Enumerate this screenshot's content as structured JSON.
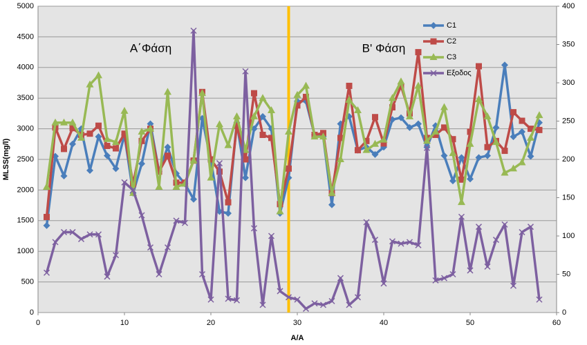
{
  "chart_data": {
    "type": "line",
    "x_label": "A/A",
    "y_label": "MLSS(mg/l)",
    "annotations": [
      "Α΄Φάση",
      "Β' Φάση"
    ],
    "phase_divider": {
      "x": 29,
      "color": "#ffc000"
    },
    "x": [
      1,
      2,
      3,
      4,
      5,
      6,
      7,
      8,
      9,
      10,
      11,
      12,
      13,
      14,
      15,
      16,
      17,
      18,
      19,
      20,
      21,
      22,
      23,
      24,
      25,
      26,
      27,
      28,
      29,
      30,
      31,
      32,
      33,
      34,
      35,
      36,
      37,
      38,
      39,
      40,
      41,
      42,
      43,
      44,
      45,
      46,
      47,
      48,
      49,
      50,
      51,
      52,
      53,
      54,
      55,
      56,
      57,
      58
    ],
    "series": [
      {
        "name": "C1",
        "color": "#4a7ebb",
        "marker": "diamond",
        "values": [
          1420,
          2550,
          2230,
          2750,
          3000,
          2320,
          2870,
          2560,
          2350,
          2900,
          1950,
          2430,
          3080,
          2300,
          2700,
          2270,
          2100,
          1850,
          3170,
          2480,
          1650,
          1620,
          3100,
          2200,
          3000,
          3200,
          3000,
          1620,
          2200,
          3450,
          3450,
          2900,
          2870,
          1760,
          3080,
          3200,
          2650,
          2700,
          2580,
          2700,
          3150,
          3180,
          3020,
          3080,
          2700,
          3050,
          2560,
          2150,
          2530,
          2180,
          2530,
          2560,
          3020,
          4040,
          2870,
          2950,
          2550,
          3100
        ]
      },
      {
        "name": "C2",
        "color": "#be4b48",
        "marker": "square",
        "values": [
          1560,
          3020,
          2670,
          3010,
          2900,
          2920,
          3050,
          2720,
          2680,
          2920,
          2100,
          2800,
          3000,
          2300,
          2560,
          2120,
          2120,
          2480,
          3600,
          2500,
          2300,
          1800,
          3050,
          2500,
          3580,
          2900,
          2850,
          1770,
          2350,
          3380,
          3520,
          2900,
          2930,
          1950,
          2850,
          3700,
          2650,
          2800,
          3190,
          2760,
          3350,
          3700,
          3250,
          4250,
          2850,
          2900,
          3020,
          2830,
          2170,
          2950,
          4020,
          2700,
          2800,
          2640,
          3270,
          3130,
          3000,
          2980
        ]
      },
      {
        "name": "C3",
        "color": "#98b954",
        "marker": "triangle",
        "values": [
          2050,
          3100,
          3100,
          3100,
          2850,
          3720,
          3870,
          2830,
          2780,
          3290,
          1950,
          2950,
          3000,
          2050,
          3600,
          2050,
          2100,
          2480,
          3580,
          2200,
          3070,
          2730,
          3200,
          2650,
          3200,
          3500,
          3300,
          1650,
          2950,
          3550,
          3700,
          2870,
          2870,
          1950,
          2500,
          3470,
          3300,
          2650,
          2750,
          2820,
          3500,
          3770,
          3200,
          3700,
          2800,
          2950,
          3350,
          2600,
          1800,
          2750,
          3480,
          3200,
          2780,
          2280,
          2350,
          2450,
          2850,
          3220
        ]
      },
      {
        "name": "Εξοδος",
        "color": "#7d60a0",
        "marker": "x",
        "axis": "y2",
        "values": [
          52,
          92,
          105,
          105,
          96,
          102,
          102,
          47,
          75,
          170,
          160,
          127,
          85,
          50,
          85,
          120,
          117,
          368,
          50,
          17,
          195,
          18,
          16,
          315,
          110,
          10,
          100,
          28,
          20,
          17,
          5,
          12,
          10,
          15,
          45,
          10,
          20,
          118,
          95,
          38,
          93,
          90,
          92,
          88,
          215,
          42,
          45,
          50,
          125,
          55,
          112,
          60,
          95,
          115,
          35,
          105,
          112,
          17
        ]
      }
    ],
    "xlim": [
      0,
      60
    ],
    "xticks": [
      0,
      10,
      20,
      30,
      40,
      50,
      60
    ],
    "ylim": [
      0,
      5000
    ],
    "yticks": [
      0,
      500,
      1000,
      1500,
      2000,
      2500,
      3000,
      3500,
      4000,
      4500,
      5000
    ],
    "y2lim": [
      0,
      400
    ],
    "y2ticks": [
      0,
      50,
      100,
      150,
      200,
      250,
      300,
      350,
      400
    ],
    "grid": true,
    "legend": "top-right"
  }
}
